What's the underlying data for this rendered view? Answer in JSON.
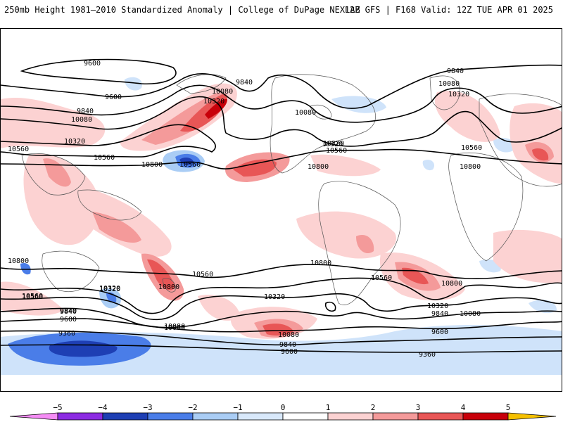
{
  "header": {
    "title": "250mb Height 1981–2010 Standardized Anomaly | College of DuPage NEXLAB",
    "run_info": "12Z GFS | F168 Valid: 12Z TUE APR 01 2025"
  },
  "map": {
    "field": "250mb Height Standardized Anomaly",
    "contour_labels": [
      "9600",
      "9840",
      "10080",
      "10320",
      "9600",
      "9840",
      "10080",
      "10320",
      "10560",
      "10800",
      "9840",
      "10080",
      "10320",
      "10560",
      "10800",
      "10080",
      "10320",
      "10560",
      "10800",
      "9840",
      "10080",
      "10320",
      "10560",
      "10800",
      "10800",
      "10560",
      "10320",
      "9840",
      "9600",
      "10560",
      "10320",
      "10080",
      "9840",
      "9600",
      "10800",
      "10560",
      "10320",
      "10080",
      "9360",
      "10800",
      "10560",
      "10320",
      "10080",
      "9840",
      "9600",
      "9360",
      "10560"
    ]
  },
  "colorbar": {
    "ticks": [
      "−5",
      "−4",
      "−3",
      "−2",
      "−1",
      "0",
      "1",
      "2",
      "3",
      "4",
      "5"
    ],
    "colors": [
      "#f58cf5",
      "#8c2be2",
      "#1e3fb4",
      "#4a7de8",
      "#aacdf5",
      "#d8e8fa",
      "#ffffff",
      "#fcd2d2",
      "#f49a9a",
      "#e85656",
      "#c8000a",
      "#f5a000",
      "#f5c000"
    ]
  }
}
